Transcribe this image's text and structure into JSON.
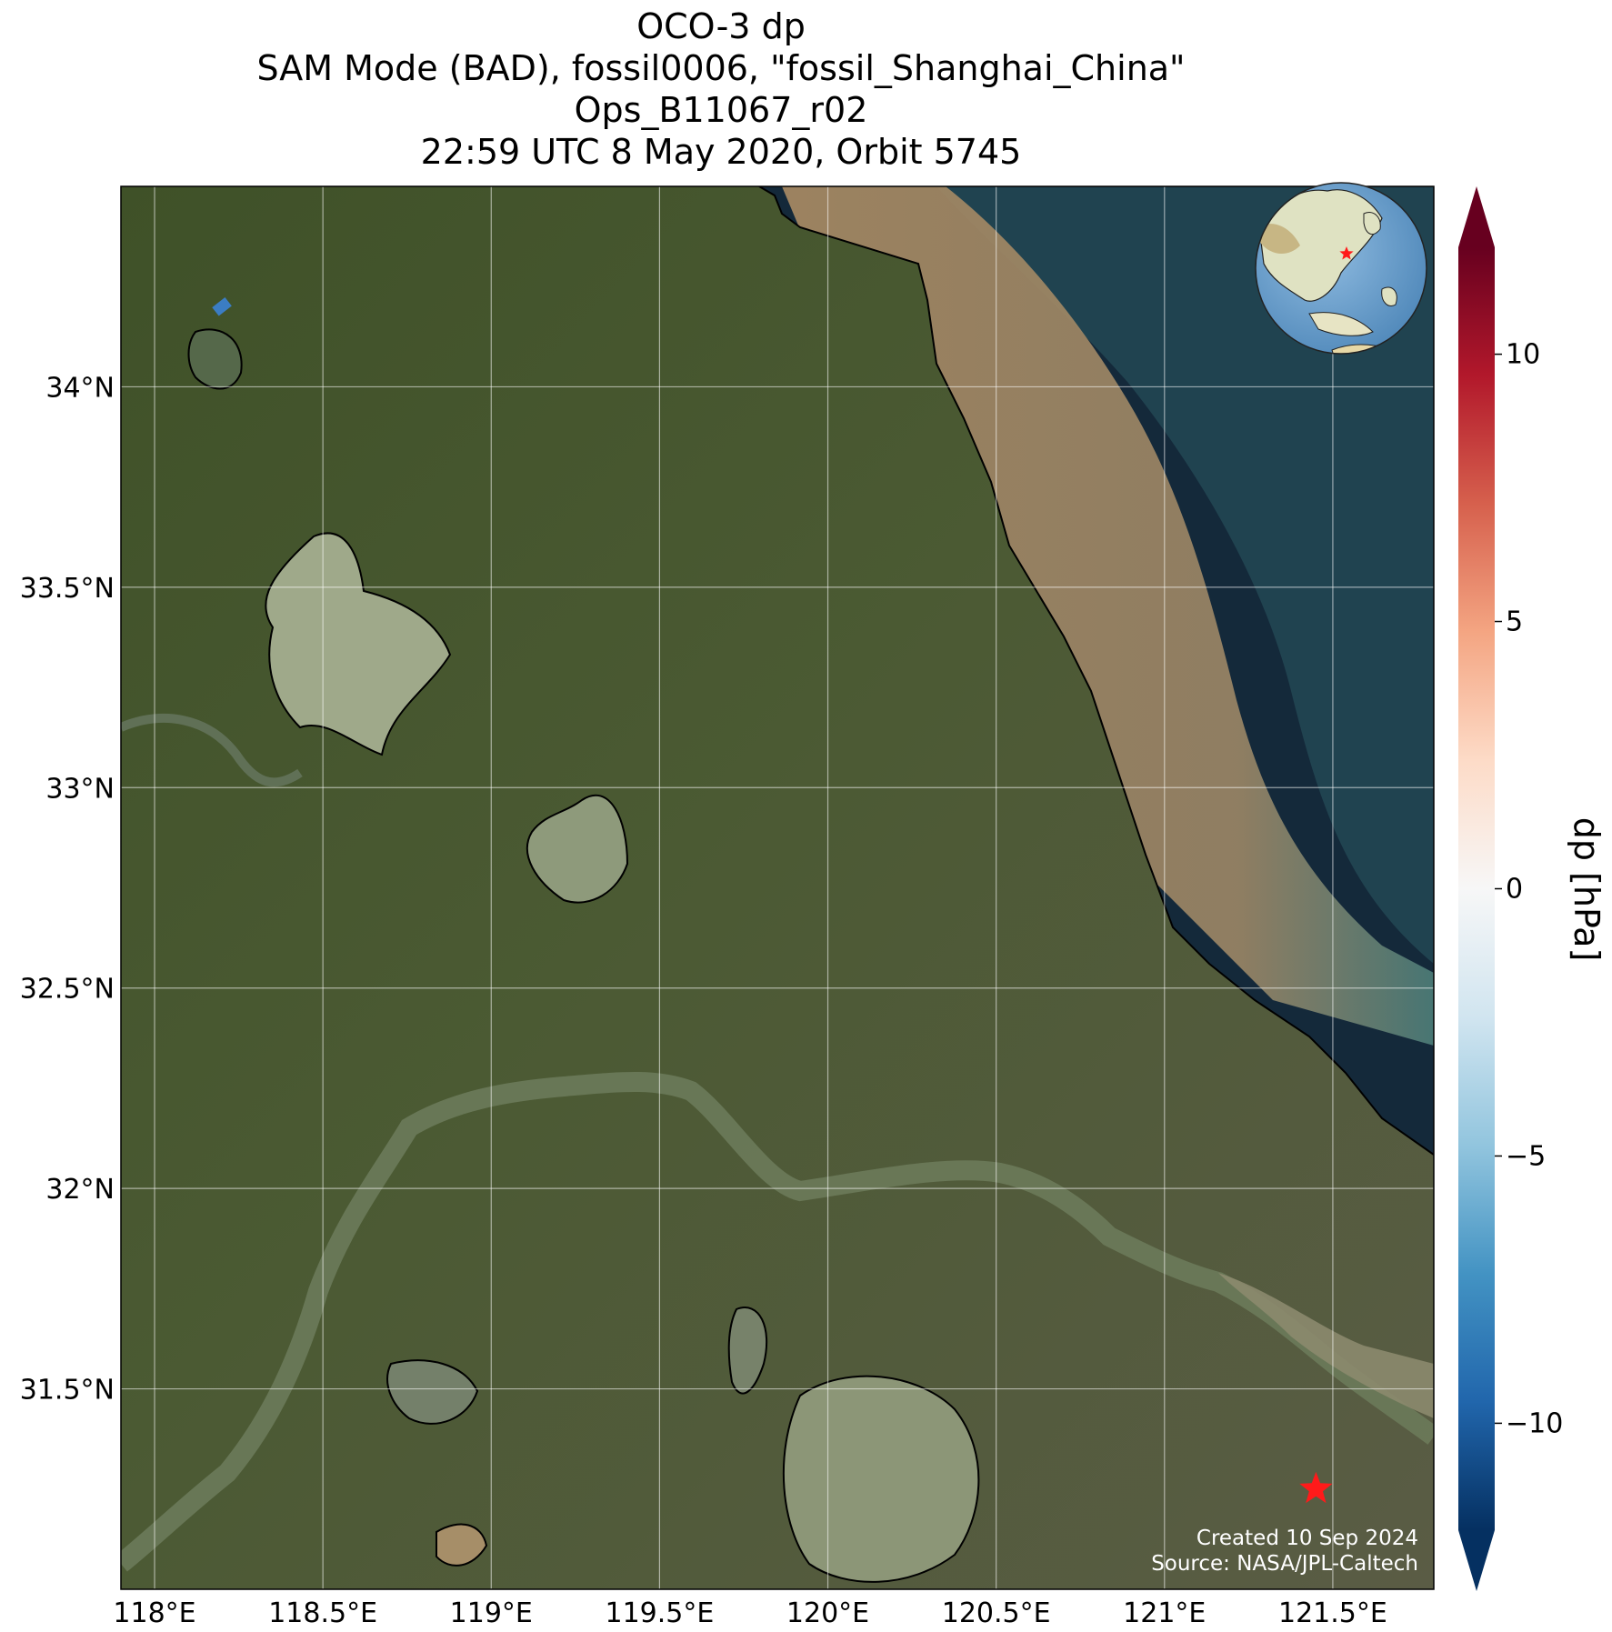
{
  "title": {
    "line1": "OCO-3 dp",
    "line2": "SAM Mode (BAD), fossil0006, \"fossil_Shanghai_China\"",
    "line3": "Ops_B11067_r02",
    "line4": "22:59 UTC 8 May 2020, Orbit 5745"
  },
  "map": {
    "lon_range": [
      117.9,
      121.8
    ],
    "lat_range": [
      31.0,
      34.5
    ],
    "lon_ticks": [
      {
        "value": 118.0,
        "label": "118°E"
      },
      {
        "value": 118.5,
        "label": "118.5°E"
      },
      {
        "value": 119.0,
        "label": "119°E"
      },
      {
        "value": 119.5,
        "label": "119.5°E"
      },
      {
        "value": 120.0,
        "label": "120°E"
      },
      {
        "value": 120.5,
        "label": "120.5°E"
      },
      {
        "value": 121.0,
        "label": "121°E"
      },
      {
        "value": 121.5,
        "label": "121.5°E"
      }
    ],
    "lat_ticks": [
      {
        "value": 34.0,
        "label": "34°N"
      },
      {
        "value": 33.5,
        "label": "33.5°N"
      },
      {
        "value": 33.0,
        "label": "33°N"
      },
      {
        "value": 32.5,
        "label": "32.5°N"
      },
      {
        "value": 32.0,
        "label": "32°N"
      },
      {
        "value": 31.5,
        "label": "31.5°N"
      }
    ],
    "gridlines": true,
    "target": {
      "name": "fossil_Shanghai_China",
      "lon": 121.45,
      "lat": 31.25,
      "marker": "red-star"
    },
    "sounding": {
      "lon": 118.2,
      "lat": 34.2,
      "dp": -6,
      "color": "#3b7dc4"
    },
    "inset_globe": "top-right",
    "colors": {
      "water": "#14293a",
      "land": "#46552f",
      "sediment": "#a68a64",
      "coast": "#000000",
      "target": "#ff1a1a"
    }
  },
  "credit": {
    "line1": "Created 10 Sep 2024",
    "line2": "Source: NASA/JPL-Caltech"
  },
  "colorbar": {
    "label": "dp [hPa]",
    "range": [
      -12,
      12
    ],
    "ticks": [
      {
        "value": 10,
        "label": "10"
      },
      {
        "value": 5,
        "label": "5"
      },
      {
        "value": 0,
        "label": "0"
      },
      {
        "value": -5,
        "label": "−5"
      },
      {
        "value": -10,
        "label": "−10"
      }
    ],
    "colormap": "RdBu_r"
  }
}
